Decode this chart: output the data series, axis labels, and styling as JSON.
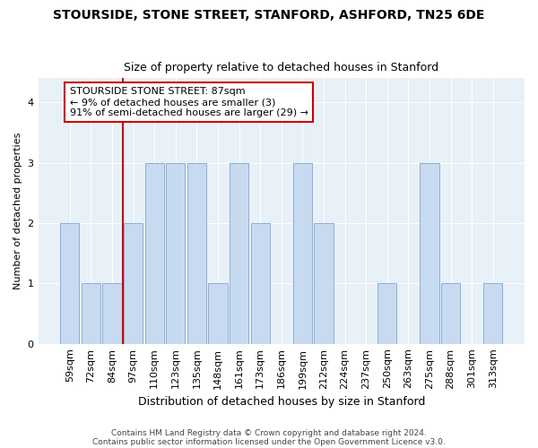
{
  "title": "STOURSIDE, STONE STREET, STANFORD, ASHFORD, TN25 6DE",
  "subtitle": "Size of property relative to detached houses in Stanford",
  "xlabel": "Distribution of detached houses by size in Stanford",
  "ylabel": "Number of detached properties",
  "categories": [
    "59sqm",
    "72sqm",
    "84sqm",
    "97sqm",
    "110sqm",
    "123sqm",
    "135sqm",
    "148sqm",
    "161sqm",
    "173sqm",
    "186sqm",
    "199sqm",
    "212sqm",
    "224sqm",
    "237sqm",
    "250sqm",
    "263sqm",
    "275sqm",
    "288sqm",
    "301sqm",
    "313sqm"
  ],
  "values": [
    2,
    1,
    1,
    2,
    3,
    3,
    3,
    1,
    3,
    2,
    0,
    3,
    2,
    0,
    0,
    1,
    0,
    3,
    1,
    0,
    1
  ],
  "bar_color": "#c8daf0",
  "bar_edge_color": "#8ab0d8",
  "red_line_after_index": 2,
  "annotation_text": "STOURSIDE STONE STREET: 87sqm\n← 9% of detached houses are smaller (3)\n91% of semi-detached houses are larger (29) →",
  "annotation_box_color": "#ffffff",
  "annotation_box_edge": "#cc0000",
  "ylim": [
    0,
    4.4
  ],
  "yticks": [
    0,
    1,
    2,
    3,
    4
  ],
  "footer1": "Contains HM Land Registry data © Crown copyright and database right 2024.",
  "footer2": "Contains public sector information licensed under the Open Government Licence v3.0.",
  "fig_background": "#ffffff",
  "plot_background": "#e8f0f8",
  "grid_color": "#ffffff",
  "title_fontsize": 10,
  "subtitle_fontsize": 9,
  "xlabel_fontsize": 9,
  "ylabel_fontsize": 8,
  "tick_fontsize": 8,
  "annotation_fontsize": 8
}
